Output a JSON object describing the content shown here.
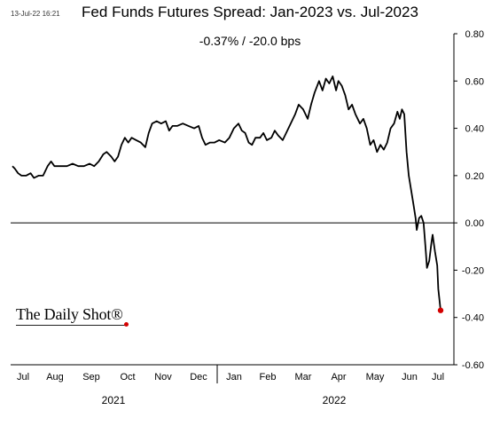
{
  "header": {
    "timestamp": "13-Jul-22 16:21",
    "title": "Fed Funds Futures Spread: Jan-2023 vs. Jul-2023",
    "subtitle": "-0.37%  /  -20.0 bps"
  },
  "branding": {
    "logo_text": "The Daily Shot®"
  },
  "colors": {
    "line": "#000000",
    "endpoint": "#d40000",
    "zero_line": "#000000",
    "background": "#ffffff"
  },
  "chart_data": {
    "type": "line",
    "title": "Fed Funds Futures Spread: Jan-2023 vs. Jul-2023",
    "subtitle": "-0.37%  /  -20.0 bps",
    "xlabel": "",
    "ylabel": "",
    "x_range": [
      "2021-07-01",
      "2022-07-13"
    ],
    "ylim": [
      -0.6,
      0.8
    ],
    "y_axis_position": "right",
    "y_ticks": [
      0.8,
      0.6,
      0.4,
      0.2,
      0.0,
      -0.2,
      -0.4,
      -0.6
    ],
    "y_tick_labels": [
      "0.80",
      "0.60",
      "0.40",
      "0.20",
      "0.00",
      "-0.20",
      "-0.40",
      "-0.60"
    ],
    "x_month_labels": [
      "Jul",
      "Aug",
      "Sep",
      "Oct",
      "Nov",
      "Dec",
      "Jan",
      "Feb",
      "Mar",
      "Apr",
      "May",
      "Jun",
      "Jul"
    ],
    "x_year_labels": [
      "2021",
      "2022"
    ],
    "grid": false,
    "reference_line": 0.0,
    "series": [
      {
        "points": [
          [
            "2021-07-01",
            0.24
          ],
          [
            "2021-07-03",
            0.23
          ],
          [
            "2021-07-06",
            0.21
          ],
          [
            "2021-07-09",
            0.2
          ],
          [
            "2021-07-13",
            0.2
          ],
          [
            "2021-07-17",
            0.21
          ],
          [
            "2021-07-20",
            0.19
          ],
          [
            "2021-07-24",
            0.2
          ],
          [
            "2021-07-28",
            0.2
          ],
          [
            "2021-08-01",
            0.24
          ],
          [
            "2021-08-04",
            0.26
          ],
          [
            "2021-08-07",
            0.24
          ],
          [
            "2021-08-12",
            0.24
          ],
          [
            "2021-08-18",
            0.24
          ],
          [
            "2021-08-23",
            0.25
          ],
          [
            "2021-08-28",
            0.24
          ],
          [
            "2021-09-02",
            0.24
          ],
          [
            "2021-09-07",
            0.25
          ],
          [
            "2021-09-11",
            0.24
          ],
          [
            "2021-09-15",
            0.26
          ],
          [
            "2021-09-19",
            0.29
          ],
          [
            "2021-09-22",
            0.3
          ],
          [
            "2021-09-26",
            0.28
          ],
          [
            "2021-09-29",
            0.26
          ],
          [
            "2021-10-02",
            0.28
          ],
          [
            "2021-10-05",
            0.33
          ],
          [
            "2021-10-08",
            0.36
          ],
          [
            "2021-10-11",
            0.34
          ],
          [
            "2021-10-14",
            0.36
          ],
          [
            "2021-10-18",
            0.35
          ],
          [
            "2021-10-22",
            0.34
          ],
          [
            "2021-10-26",
            0.32
          ],
          [
            "2021-10-29",
            0.38
          ],
          [
            "2021-11-01",
            0.42
          ],
          [
            "2021-11-05",
            0.43
          ],
          [
            "2021-11-09",
            0.42
          ],
          [
            "2021-11-13",
            0.43
          ],
          [
            "2021-11-16",
            0.39
          ],
          [
            "2021-11-19",
            0.41
          ],
          [
            "2021-11-23",
            0.41
          ],
          [
            "2021-11-28",
            0.42
          ],
          [
            "2021-12-03",
            0.41
          ],
          [
            "2021-12-08",
            0.4
          ],
          [
            "2021-12-12",
            0.41
          ],
          [
            "2021-12-15",
            0.36
          ],
          [
            "2021-12-18",
            0.33
          ],
          [
            "2021-12-22",
            0.34
          ],
          [
            "2021-12-26",
            0.34
          ],
          [
            "2021-12-30",
            0.35
          ],
          [
            "2022-01-04",
            0.34
          ],
          [
            "2022-01-08",
            0.36
          ],
          [
            "2022-01-12",
            0.4
          ],
          [
            "2022-01-16",
            0.42
          ],
          [
            "2022-01-19",
            0.39
          ],
          [
            "2022-01-22",
            0.38
          ],
          [
            "2022-01-25",
            0.34
          ],
          [
            "2022-01-28",
            0.33
          ],
          [
            "2022-01-31",
            0.36
          ],
          [
            "2022-02-04",
            0.36
          ],
          [
            "2022-02-07",
            0.38
          ],
          [
            "2022-02-10",
            0.35
          ],
          [
            "2022-02-14",
            0.36
          ],
          [
            "2022-02-17",
            0.39
          ],
          [
            "2022-02-20",
            0.37
          ],
          [
            "2022-02-24",
            0.35
          ],
          [
            "2022-02-27",
            0.38
          ],
          [
            "2022-03-03",
            0.42
          ],
          [
            "2022-03-07",
            0.46
          ],
          [
            "2022-03-10",
            0.5
          ],
          [
            "2022-03-14",
            0.48
          ],
          [
            "2022-03-18",
            0.44
          ],
          [
            "2022-03-21",
            0.5
          ],
          [
            "2022-03-24",
            0.55
          ],
          [
            "2022-03-28",
            0.6
          ],
          [
            "2022-03-31",
            0.56
          ],
          [
            "2022-04-03",
            0.61
          ],
          [
            "2022-04-06",
            0.59
          ],
          [
            "2022-04-09",
            0.62
          ],
          [
            "2022-04-12",
            0.56
          ],
          [
            "2022-04-14",
            0.6
          ],
          [
            "2022-04-17",
            0.58
          ],
          [
            "2022-04-20",
            0.54
          ],
          [
            "2022-04-23",
            0.48
          ],
          [
            "2022-04-26",
            0.5
          ],
          [
            "2022-04-29",
            0.46
          ],
          [
            "2022-05-03",
            0.42
          ],
          [
            "2022-05-06",
            0.44
          ],
          [
            "2022-05-09",
            0.4
          ],
          [
            "2022-05-12",
            0.33
          ],
          [
            "2022-05-15",
            0.35
          ],
          [
            "2022-05-18",
            0.3
          ],
          [
            "2022-05-21",
            0.33
          ],
          [
            "2022-05-24",
            0.31
          ],
          [
            "2022-05-27",
            0.34
          ],
          [
            "2022-05-30",
            0.4
          ],
          [
            "2022-06-02",
            0.42
          ],
          [
            "2022-06-05",
            0.47
          ],
          [
            "2022-06-07",
            0.44
          ],
          [
            "2022-06-09",
            0.48
          ],
          [
            "2022-06-11",
            0.46
          ],
          [
            "2022-06-13",
            0.3
          ],
          [
            "2022-06-15",
            0.2
          ],
          [
            "2022-06-17",
            0.14
          ],
          [
            "2022-06-19",
            0.08
          ],
          [
            "2022-06-21",
            0.02
          ],
          [
            "2022-06-22",
            -0.03
          ],
          [
            "2022-06-24",
            0.02
          ],
          [
            "2022-06-26",
            0.03
          ],
          [
            "2022-06-28",
            0.0
          ],
          [
            "2022-06-30",
            -0.12
          ],
          [
            "2022-07-01",
            -0.19
          ],
          [
            "2022-07-03",
            -0.16
          ],
          [
            "2022-07-05",
            -0.08
          ],
          [
            "2022-07-06",
            -0.05
          ],
          [
            "2022-07-08",
            -0.12
          ],
          [
            "2022-07-10",
            -0.18
          ],
          [
            "2022-07-11",
            -0.28
          ],
          [
            "2022-07-13",
            -0.37
          ]
        ]
      }
    ],
    "end_marker": {
      "date": "2022-07-13",
      "value": -0.37
    }
  }
}
